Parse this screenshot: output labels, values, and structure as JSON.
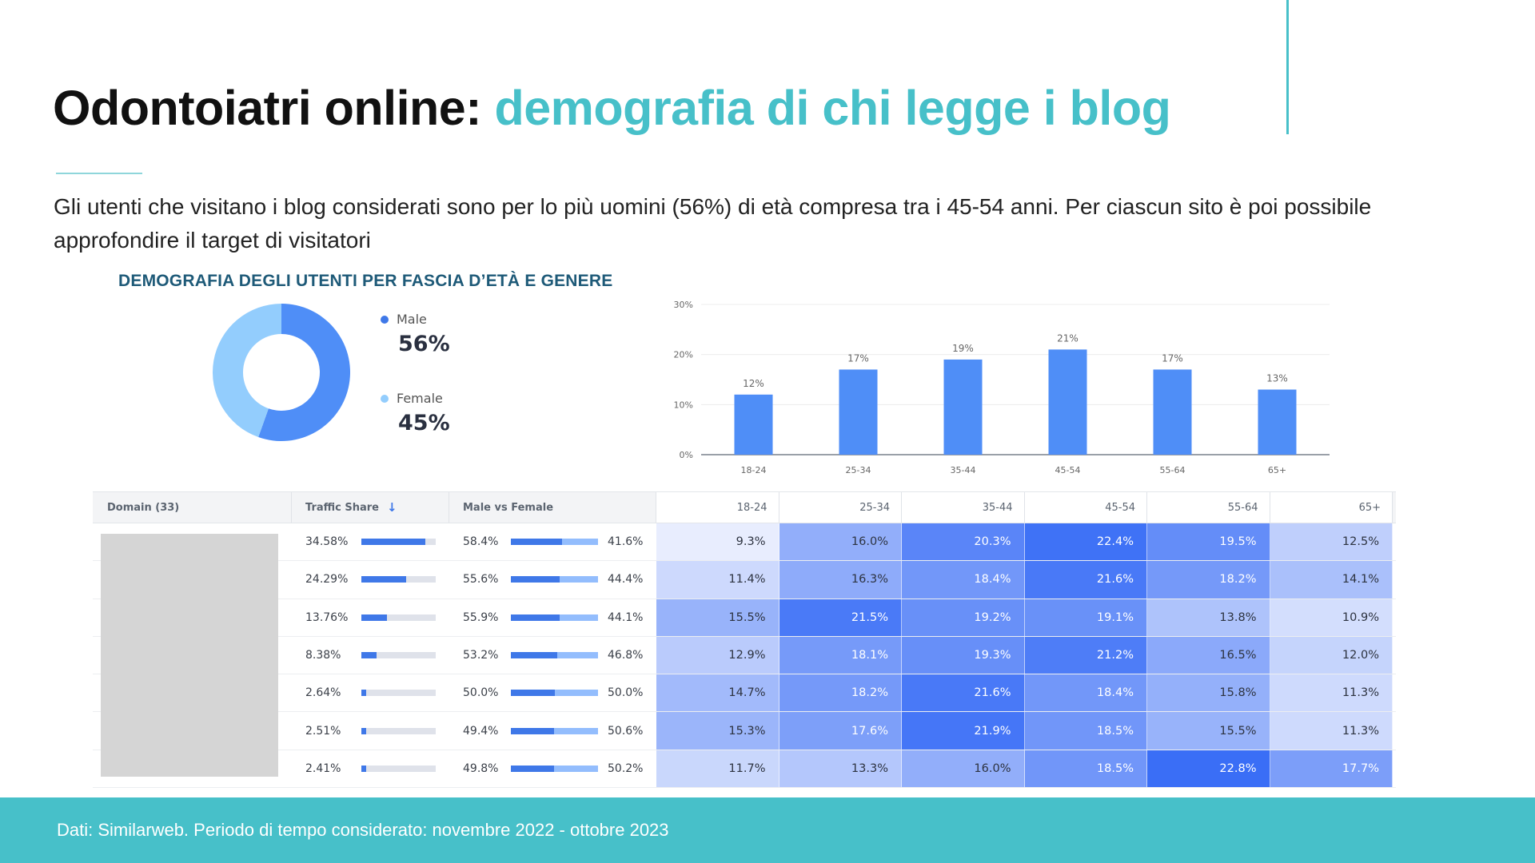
{
  "title": {
    "main": "Odontoiatri online:",
    "accent": "demografia di chi legge i blog"
  },
  "description": "Gli utenti che visitano i blog considerati sono per lo più uomini (56%) di età compresa tra i 45-54 anni. Per ciascun sito è poi possibile approfondire il target di visitatori",
  "chart_title": "DEMOGRAFIA DEGLI UTENTI PER FASCIA D’ETÀ E GENERE",
  "footer": "Dati: Similarweb. Periodo di tempo considerato: novembre 2022 - ottobre 2023",
  "colors": {
    "accent": "#47c0c9",
    "male": "#4f8ef7",
    "female": "#93cdfd",
    "bar": "#4f8ef7",
    "dark_title": "#1e5a78"
  },
  "chart_data": [
    {
      "type": "pie",
      "categories": [
        "Male",
        "Female"
      ],
      "values": [
        56,
        45
      ],
      "labels": [
        "56%",
        "45%"
      ]
    },
    {
      "type": "bar",
      "categories": [
        "18-24",
        "25-34",
        "35-44",
        "45-54",
        "55-64",
        "65+"
      ],
      "values": [
        12,
        17,
        19,
        21,
        17,
        13
      ],
      "data_labels": [
        "12%",
        "17%",
        "19%",
        "21%",
        "17%",
        "13%"
      ],
      "yticks": [
        "0%",
        "10%",
        "20%",
        "30%"
      ],
      "ylim": [
        0,
        30
      ],
      "grid": true
    },
    {
      "type": "table",
      "headers": {
        "domain": "Domain (33)",
        "traffic": "Traffic Share",
        "mvf": "Male vs Female",
        "ages": [
          "18-24",
          "25-34",
          "35-44",
          "45-54",
          "55-64",
          "65+"
        ]
      },
      "rows": [
        {
          "traffic": "34.58%",
          "traffic_v": 34.58,
          "male": "58.4%",
          "female": "41.6%",
          "ages": [
            "9.3%",
            "16.0%",
            "20.3%",
            "22.4%",
            "19.5%",
            "12.5%"
          ]
        },
        {
          "traffic": "24.29%",
          "traffic_v": 24.29,
          "male": "55.6%",
          "female": "44.4%",
          "ages": [
            "11.4%",
            "16.3%",
            "18.4%",
            "21.6%",
            "18.2%",
            "14.1%"
          ]
        },
        {
          "traffic": "13.76%",
          "traffic_v": 13.76,
          "male": "55.9%",
          "female": "44.1%",
          "ages": [
            "15.5%",
            "21.5%",
            "19.2%",
            "19.1%",
            "13.8%",
            "10.9%"
          ]
        },
        {
          "traffic": "8.38%",
          "traffic_v": 8.38,
          "male": "53.2%",
          "female": "46.8%",
          "ages": [
            "12.9%",
            "18.1%",
            "19.3%",
            "21.2%",
            "16.5%",
            "12.0%"
          ]
        },
        {
          "traffic": "2.64%",
          "traffic_v": 2.64,
          "male": "50.0%",
          "female": "50.0%",
          "ages": [
            "14.7%",
            "18.2%",
            "21.6%",
            "18.4%",
            "15.8%",
            "11.3%"
          ]
        },
        {
          "traffic": "2.51%",
          "traffic_v": 2.51,
          "male": "49.4%",
          "female": "50.6%",
          "ages": [
            "15.3%",
            "17.6%",
            "21.9%",
            "18.5%",
            "15.5%",
            "11.3%"
          ]
        },
        {
          "traffic": "2.41%",
          "traffic_v": 2.41,
          "male": "49.8%",
          "female": "50.2%",
          "ages": [
            "11.7%",
            "13.3%",
            "16.0%",
            "18.5%",
            "22.8%",
            "17.7%"
          ]
        }
      ]
    }
  ]
}
